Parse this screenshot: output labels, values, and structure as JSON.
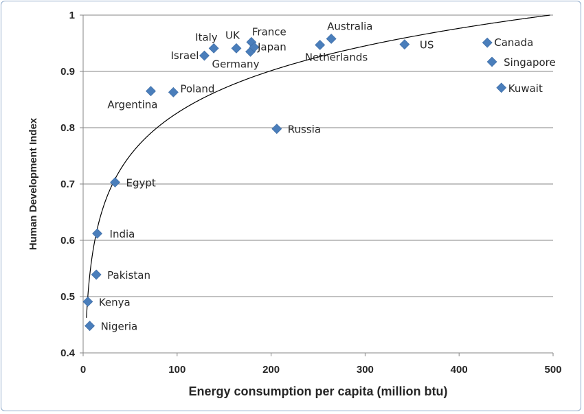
{
  "chart_data": {
    "type": "scatter",
    "xlabel": "Energy consumption per capita (million btu)",
    "ylabel": "Human Development Index",
    "xlim": [
      0,
      500
    ],
    "ylim": [
      0.4,
      1
    ],
    "x_ticks": [
      "0",
      "100",
      "200",
      "300",
      "400",
      "500"
    ],
    "y_ticks": [
      "0.4",
      "0.5",
      "0.6",
      "0.7",
      "0.8",
      "0.9",
      "1"
    ],
    "grid": "horizontal",
    "marker_color": "#4a7ebb",
    "trendline": "logarithmic",
    "points": [
      {
        "name": "Nigeria",
        "x": 7,
        "y": 0.448
      },
      {
        "name": "Kenya",
        "x": 5,
        "y": 0.491
      },
      {
        "name": "Pakistan",
        "x": 14,
        "y": 0.539
      },
      {
        "name": "India",
        "x": 15,
        "y": 0.612
      },
      {
        "name": "Egypt",
        "x": 34,
        "y": 0.703
      },
      {
        "name": "Argentina",
        "x": 72,
        "y": 0.865
      },
      {
        "name": "Poland",
        "x": 96,
        "y": 0.863
      },
      {
        "name": "Russia",
        "x": 206,
        "y": 0.798
      },
      {
        "name": "Israel",
        "x": 129,
        "y": 0.928
      },
      {
        "name": "Italy",
        "x": 139,
        "y": 0.941
      },
      {
        "name": "UK",
        "x": 163,
        "y": 0.941
      },
      {
        "name": "France",
        "x": 179,
        "y": 0.952
      },
      {
        "name": "Germany",
        "x": 178,
        "y": 0.935
      },
      {
        "name": "Japan",
        "x": 182,
        "y": 0.943
      },
      {
        "name": "Netherlands",
        "x": 252,
        "y": 0.947
      },
      {
        "name": "Australia",
        "x": 264,
        "y": 0.958
      },
      {
        "name": "US",
        "x": 342,
        "y": 0.948
      },
      {
        "name": "Canada",
        "x": 430,
        "y": 0.951
      },
      {
        "name": "Singapore",
        "x": 435,
        "y": 0.917
      },
      {
        "name": "Kuwait",
        "x": 445,
        "y": 0.871
      }
    ]
  }
}
